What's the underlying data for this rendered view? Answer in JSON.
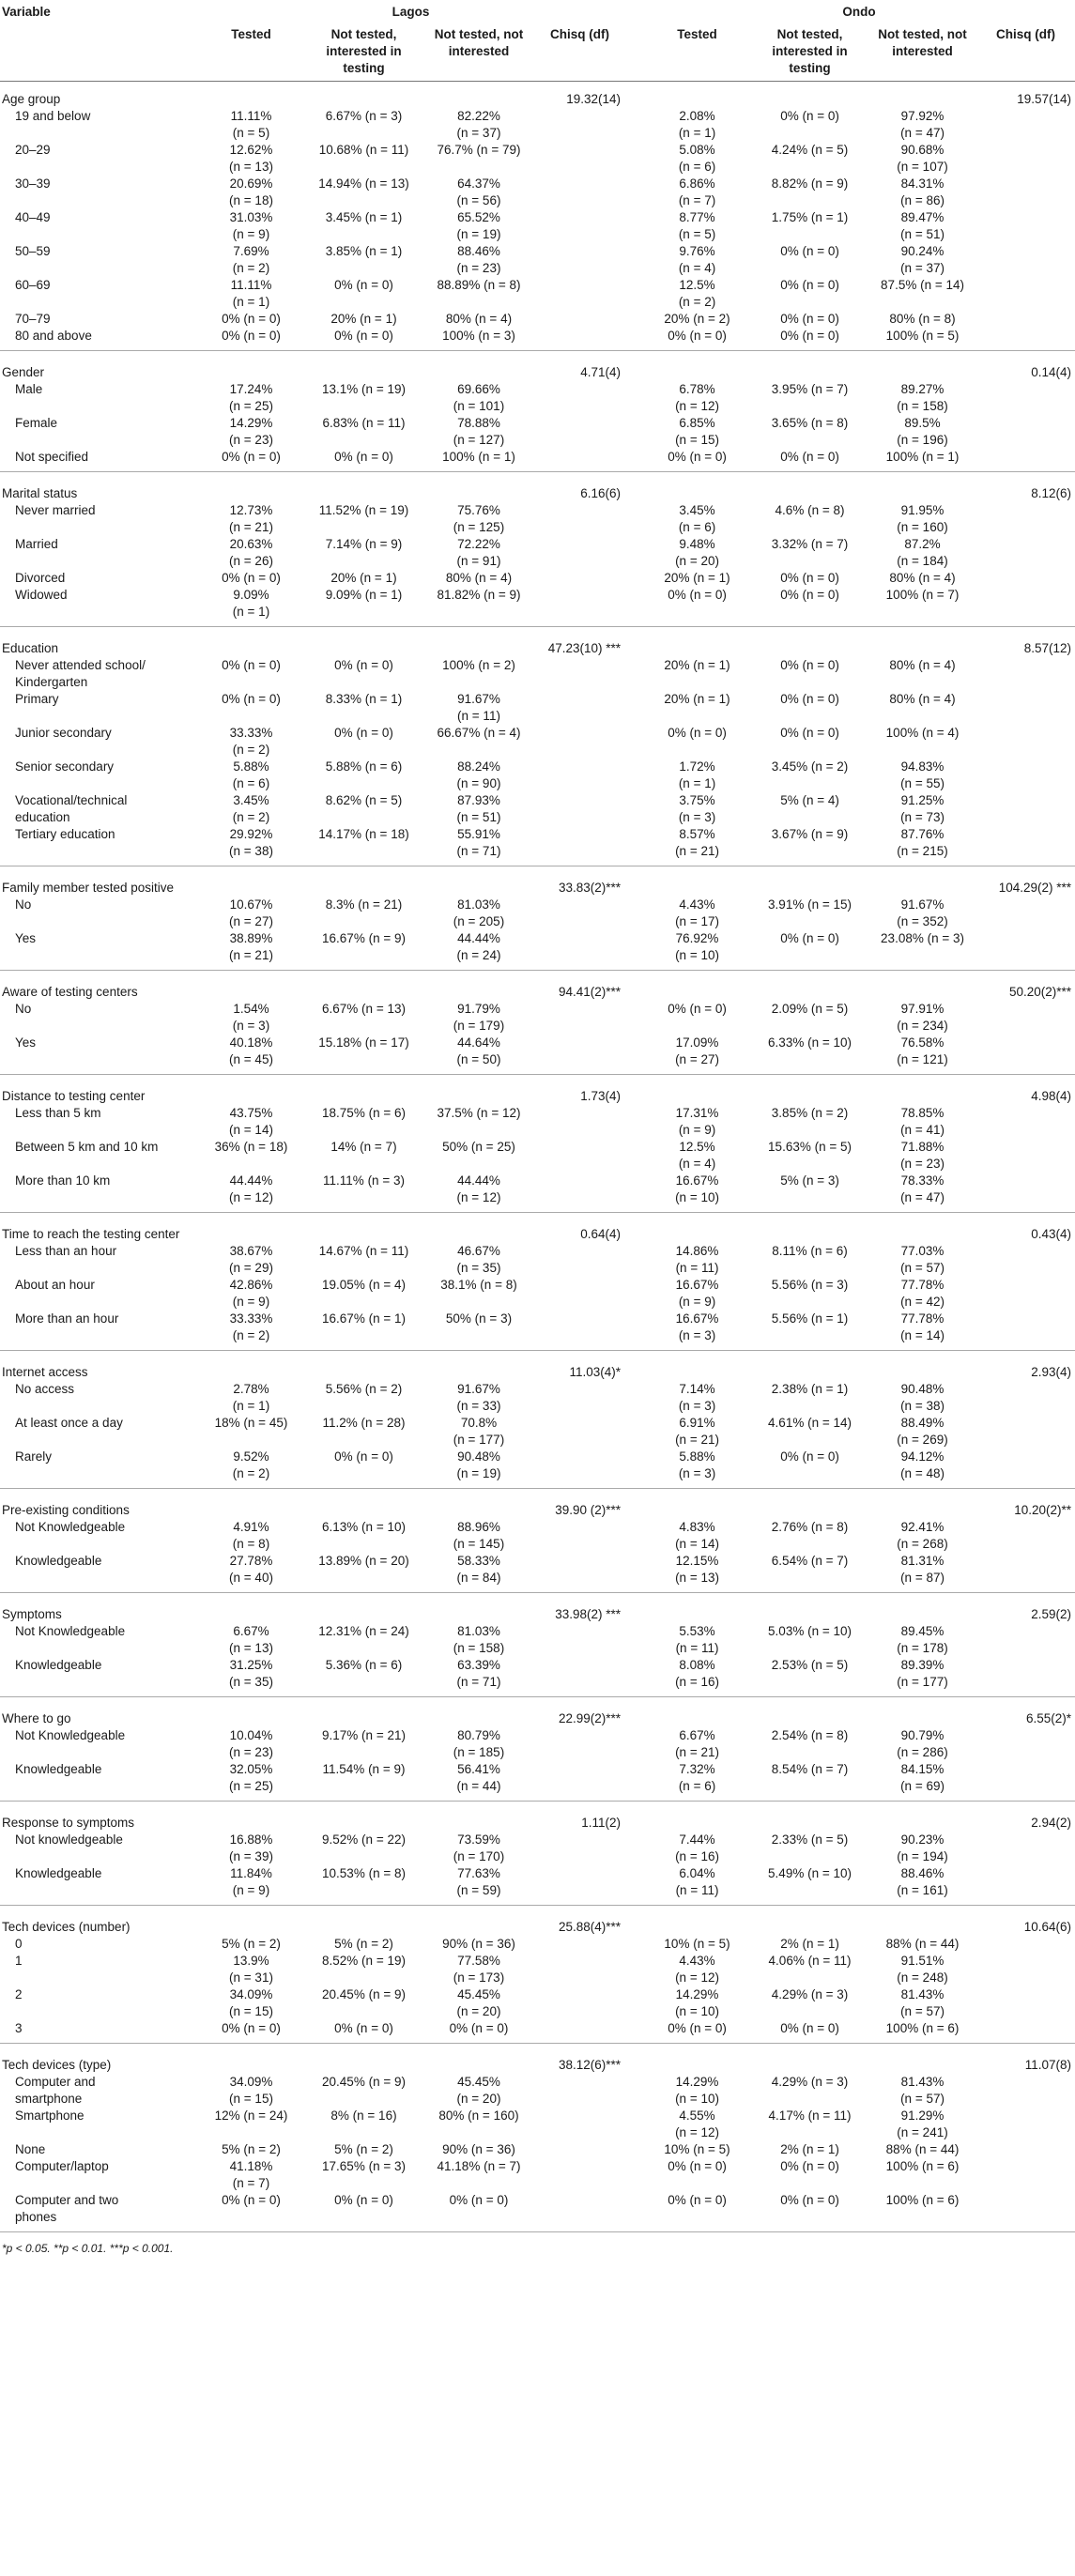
{
  "header": {
    "variable": "Variable",
    "lagos": "Lagos",
    "ondo": "Ondo",
    "columns": [
      "Tested",
      "Not tested, interested in testing",
      "Not tested, not interested",
      "Chisq (df)",
      "Tested",
      "Not tested, interested in testing",
      "Not tested, not interested",
      "Chisq (df)"
    ]
  },
  "groups": [
    {
      "name": "Age group",
      "chi_lagos": "19.32(14)",
      "chi_ondo": "19.57(14)",
      "rows": [
        {
          "label": "19 and below",
          "cells": [
            "11.11%|(n = 5)",
            "6.67% (n = 3)",
            "82.22%|(n = 37)",
            "2.08%|(n = 1)",
            "0% (n = 0)",
            "97.92%|(n = 47)"
          ]
        },
        {
          "label": "20–29",
          "cells": [
            "12.62%|(n = 13)",
            "10.68% (n = 11)",
            "76.7% (n = 79)",
            "5.08%|(n = 6)",
            "4.24% (n = 5)",
            "90.68%|(n = 107)"
          ]
        },
        {
          "label": "30–39",
          "cells": [
            "20.69%|(n = 18)",
            "14.94% (n = 13)",
            "64.37%|(n = 56)",
            "6.86%|(n = 7)",
            "8.82% (n = 9)",
            "84.31%|(n = 86)"
          ]
        },
        {
          "label": "40–49",
          "cells": [
            "31.03%|(n = 9)",
            "3.45% (n = 1)",
            "65.52%|(n = 19)",
            "8.77%|(n = 5)",
            "1.75% (n = 1)",
            "89.47%|(n = 51)"
          ]
        },
        {
          "label": "50–59",
          "cells": [
            "7.69%|(n = 2)",
            "3.85% (n = 1)",
            "88.46%|(n = 23)",
            "9.76%|(n = 4)",
            "0% (n = 0)",
            "90.24%|(n = 37)"
          ]
        },
        {
          "label": "60–69",
          "cells": [
            "11.11%|(n = 1)",
            "0% (n = 0)",
            "88.89% (n = 8)",
            "12.5%|(n = 2)",
            "0% (n = 0)",
            "87.5% (n = 14)"
          ]
        },
        {
          "label": "70–79",
          "cells": [
            "0% (n = 0)",
            "20% (n = 1)",
            "80% (n = 4)",
            "20% (n = 2)",
            "0% (n = 0)",
            "80% (n = 8)"
          ]
        },
        {
          "label": "80 and above",
          "cells": [
            "0% (n = 0)",
            "0% (n = 0)",
            "100% (n = 3)",
            "0% (n = 0)",
            "0% (n = 0)",
            "100% (n = 5)"
          ]
        }
      ]
    },
    {
      "name": "Gender",
      "chi_lagos": "4.71(4)",
      "chi_ondo": "0.14(4)",
      "rows": [
        {
          "label": "Male",
          "cells": [
            "17.24%|(n = 25)",
            "13.1% (n = 19)",
            "69.66%|(n = 101)",
            "6.78%|(n = 12)",
            "3.95% (n = 7)",
            "89.27%|(n = 158)"
          ]
        },
        {
          "label": "Female",
          "cells": [
            "14.29%|(n = 23)",
            "6.83% (n = 11)",
            "78.88%|(n = 127)",
            "6.85%|(n = 15)",
            "3.65% (n = 8)",
            "89.5%|(n = 196)"
          ]
        },
        {
          "label": "Not specified",
          "cells": [
            "0% (n = 0)",
            "0% (n = 0)",
            "100% (n = 1)",
            "0% (n = 0)",
            "0% (n = 0)",
            "100% (n = 1)"
          ]
        }
      ]
    },
    {
      "name": "Marital status",
      "chi_lagos": "6.16(6)",
      "chi_ondo": "8.12(6)",
      "rows": [
        {
          "label": "Never married",
          "cells": [
            "12.73%|(n = 21)",
            "11.52% (n = 19)",
            "75.76%|(n = 125)",
            "3.45%|(n = 6)",
            "4.6% (n = 8)",
            "91.95%|(n = 160)"
          ]
        },
        {
          "label": "Married",
          "cells": [
            "20.63%|(n = 26)",
            "7.14% (n = 9)",
            "72.22%|(n = 91)",
            "9.48%|(n = 20)",
            "3.32% (n = 7)",
            "87.2%|(n = 184)"
          ]
        },
        {
          "label": "Divorced",
          "cells": [
            "0% (n = 0)",
            "20% (n = 1)",
            "80% (n = 4)",
            "20% (n = 1)",
            "0% (n = 0)",
            "80% (n = 4)"
          ]
        },
        {
          "label": "Widowed",
          "cells": [
            "9.09%|(n = 1)",
            "9.09% (n = 1)",
            "81.82% (n = 9)",
            "0% (n = 0)",
            "0% (n = 0)",
            "100% (n = 7)"
          ]
        }
      ]
    },
    {
      "name": "Education",
      "chi_lagos": "47.23(10) ***",
      "chi_ondo": "8.57(12)",
      "rows": [
        {
          "label": "Never attended school/|Kindergarten",
          "cells": [
            "0% (n = 0)",
            "0% (n = 0)",
            "100% (n = 2)",
            "20% (n = 1)",
            "0% (n = 0)",
            "80% (n = 4)"
          ]
        },
        {
          "label": "Primary",
          "cells": [
            "0% (n = 0)",
            "8.33% (n = 1)",
            "91.67%|(n = 11)",
            "20% (n = 1)",
            "0% (n = 0)",
            "80% (n = 4)"
          ]
        },
        {
          "label": "Junior secondary",
          "cells": [
            "33.33%|(n = 2)",
            "0% (n = 0)",
            "66.67% (n = 4)",
            "0% (n = 0)",
            "0% (n = 0)",
            "100% (n = 4)"
          ]
        },
        {
          "label": "Senior secondary",
          "cells": [
            "5.88%|(n = 6)",
            "5.88% (n = 6)",
            "88.24%|(n = 90)",
            "1.72%|(n = 1)",
            "3.45% (n = 2)",
            "94.83%|(n = 55)"
          ]
        },
        {
          "label": "Vocational/technical|education",
          "cells": [
            "3.45%|(n = 2)",
            "8.62% (n = 5)",
            "87.93%|(n = 51)",
            "3.75%|(n = 3)",
            "5% (n = 4)",
            "91.25%|(n = 73)"
          ]
        },
        {
          "label": "Tertiary education",
          "cells": [
            "29.92%|(n = 38)",
            "14.17% (n = 18)",
            "55.91%|(n = 71)",
            "8.57%|(n = 21)",
            "3.67% (n = 9)",
            "87.76%|(n = 215)"
          ]
        }
      ]
    },
    {
      "name": "Family member tested positive",
      "chi_lagos": "33.83(2)***",
      "chi_ondo": "104.29(2) ***",
      "rows": [
        {
          "label": "No",
          "cells": [
            "10.67%|(n = 27)",
            "8.3% (n = 21)",
            "81.03%|(n = 205)",
            "4.43%|(n = 17)",
            "3.91% (n = 15)",
            "91.67%|(n = 352)"
          ]
        },
        {
          "label": "Yes",
          "cells": [
            "38.89%|(n = 21)",
            "16.67% (n = 9)",
            "44.44%|(n = 24)",
            "76.92%|(n = 10)",
            "0% (n = 0)",
            "23.08% (n = 3)"
          ]
        }
      ]
    },
    {
      "name": "Aware of testing centers",
      "chi_lagos": "94.41(2)***",
      "chi_ondo": "50.20(2)***",
      "rows": [
        {
          "label": "No",
          "cells": [
            "1.54%|(n = 3)",
            "6.67% (n = 13)",
            "91.79%|(n = 179)",
            "0% (n = 0)",
            "2.09% (n = 5)",
            "97.91%|(n = 234)"
          ]
        },
        {
          "label": "Yes",
          "cells": [
            "40.18%|(n = 45)",
            "15.18% (n = 17)",
            "44.64%|(n = 50)",
            "17.09%|(n = 27)",
            "6.33% (n = 10)",
            "76.58%|(n = 121)"
          ]
        }
      ]
    },
    {
      "name": "Distance to testing center",
      "chi_lagos": "1.73(4)",
      "chi_ondo": "4.98(4)",
      "rows": [
        {
          "label": "Less than 5 km",
          "cells": [
            "43.75%|(n = 14)",
            "18.75% (n = 6)",
            "37.5% (n = 12)",
            "17.31%|(n = 9)",
            "3.85% (n = 2)",
            "78.85%|(n = 41)"
          ]
        },
        {
          "label": "Between 5 km and 10 km",
          "cells": [
            "36% (n = 18)",
            "14% (n = 7)",
            "50% (n = 25)",
            "12.5%|(n = 4)",
            "15.63% (n = 5)",
            "71.88%|(n = 23)"
          ]
        },
        {
          "label": "More than 10 km",
          "cells": [
            "44.44%|(n = 12)",
            "11.11% (n = 3)",
            "44.44%|(n = 12)",
            "16.67%|(n = 10)",
            "5% (n = 3)",
            "78.33%|(n = 47)"
          ]
        }
      ]
    },
    {
      "name": "Time to reach the testing center",
      "chi_lagos": "0.64(4)",
      "chi_ondo": "0.43(4)",
      "rows": [
        {
          "label": "Less than an hour",
          "cells": [
            "38.67%|(n = 29)",
            "14.67% (n = 11)",
            "46.67%|(n = 35)",
            "14.86%|(n = 11)",
            "8.11% (n = 6)",
            "77.03%|(n = 57)"
          ]
        },
        {
          "label": "About an hour",
          "cells": [
            "42.86%|(n = 9)",
            "19.05% (n = 4)",
            "38.1% (n = 8)",
            "16.67%|(n = 9)",
            "5.56% (n = 3)",
            "77.78%|(n = 42)"
          ]
        },
        {
          "label": "More than an hour",
          "cells": [
            "33.33%|(n = 2)",
            "16.67% (n = 1)",
            "50% (n = 3)",
            "16.67%|(n = 3)",
            "5.56% (n = 1)",
            "77.78%|(n = 14)"
          ]
        }
      ]
    },
    {
      "name": "Internet access",
      "chi_lagos": "11.03(4)*",
      "chi_ondo": "2.93(4)",
      "rows": [
        {
          "label": "No access",
          "cells": [
            "2.78%|(n = 1)",
            "5.56% (n = 2)",
            "91.67%|(n = 33)",
            "7.14%|(n = 3)",
            "2.38% (n = 1)",
            "90.48%|(n = 38)"
          ]
        },
        {
          "label": "At least once a day",
          "cells": [
            "18% (n = 45)",
            "11.2% (n = 28)",
            "70.8%|(n = 177)",
            "6.91%|(n = 21)",
            "4.61% (n = 14)",
            "88.49%|(n = 269)"
          ]
        },
        {
          "label": "Rarely",
          "cells": [
            "9.52%|(n = 2)",
            "0% (n = 0)",
            "90.48%|(n = 19)",
            "5.88%|(n = 3)",
            "0% (n = 0)",
            "94.12%|(n = 48)"
          ]
        }
      ]
    },
    {
      "name": "Pre-existing conditions",
      "chi_lagos": "39.90 (2)***",
      "chi_ondo": "10.20(2)**",
      "rows": [
        {
          "label": "Not Knowledgeable",
          "cells": [
            "4.91%|(n = 8)",
            "6.13% (n = 10)",
            "88.96%|(n = 145)",
            "4.83%|(n = 14)",
            "2.76% (n = 8)",
            "92.41%|(n = 268)"
          ]
        },
        {
          "label": "Knowledgeable",
          "cells": [
            "27.78%|(n = 40)",
            "13.89% (n = 20)",
            "58.33%|(n = 84)",
            "12.15%|(n = 13)",
            "6.54% (n = 7)",
            "81.31%|(n = 87)"
          ]
        }
      ]
    },
    {
      "name": "Symptoms",
      "chi_lagos": "33.98(2) ***",
      "chi_ondo": "2.59(2)",
      "rows": [
        {
          "label": "Not Knowledgeable",
          "cells": [
            "6.67%|(n = 13)",
            "12.31% (n = 24)",
            "81.03%|(n = 158)",
            "5.53%|(n = 11)",
            "5.03% (n = 10)",
            "89.45%|(n = 178)"
          ]
        },
        {
          "label": "Knowledgeable",
          "cells": [
            "31.25%|(n = 35)",
            "5.36% (n = 6)",
            "63.39%|(n = 71)",
            "8.08%|(n = 16)",
            "2.53% (n = 5)",
            "89.39%|(n = 177)"
          ]
        }
      ]
    },
    {
      "name": "Where to go",
      "chi_lagos": "22.99(2)***",
      "chi_ondo": "6.55(2)*",
      "rows": [
        {
          "label": "Not Knowledgeable",
          "cells": [
            "10.04%|(n = 23)",
            "9.17% (n = 21)",
            "80.79%|(n = 185)",
            "6.67%|(n = 21)",
            "2.54% (n = 8)",
            "90.79%|(n = 286)"
          ]
        },
        {
          "label": "Knowledgeable",
          "cells": [
            "32.05%|(n = 25)",
            "11.54% (n = 9)",
            "56.41%|(n = 44)",
            "7.32%|(n = 6)",
            "8.54% (n = 7)",
            "84.15%|(n = 69)"
          ]
        }
      ]
    },
    {
      "name": "Response to symptoms",
      "chi_lagos": "1.11(2)",
      "chi_ondo": "2.94(2)",
      "rows": [
        {
          "label": "Not knowledgeable",
          "cells": [
            "16.88%|(n = 39)",
            "9.52% (n = 22)",
            "73.59%|(n = 170)",
            "7.44%|(n = 16)",
            "2.33% (n = 5)",
            "90.23%|(n = 194)"
          ]
        },
        {
          "label": "Knowledgeable",
          "cells": [
            "11.84%|(n = 9)",
            "10.53% (n = 8)",
            "77.63%|(n = 59)",
            "6.04%|(n = 11)",
            "5.49% (n = 10)",
            "88.46%|(n = 161)"
          ]
        }
      ]
    },
    {
      "name": "Tech devices (number)",
      "chi_lagos": "25.88(4)***",
      "chi_ondo": "10.64(6)",
      "rows": [
        {
          "label": "0",
          "cells": [
            "5% (n = 2)",
            "5% (n = 2)",
            "90% (n = 36)",
            "10% (n = 5)",
            "2% (n = 1)",
            "88% (n = 44)"
          ]
        },
        {
          "label": "1",
          "cells": [
            "13.9%|(n = 31)",
            "8.52% (n = 19)",
            "77.58%|(n = 173)",
            "4.43%|(n = 12)",
            "4.06% (n = 11)",
            "91.51%|(n = 248)"
          ]
        },
        {
          "label": "2",
          "cells": [
            "34.09%|(n = 15)",
            "20.45% (n = 9)",
            "45.45%|(n = 20)",
            "14.29%|(n = 10)",
            "4.29% (n = 3)",
            "81.43%|(n = 57)"
          ]
        },
        {
          "label": "3",
          "cells": [
            "0% (n = 0)",
            "0% (n = 0)",
            "0% (n = 0)",
            "0% (n = 0)",
            "0% (n = 0)",
            "100% (n = 6)"
          ]
        }
      ]
    },
    {
      "name": "Tech devices (type)",
      "chi_lagos": "38.12(6)***",
      "chi_ondo": "11.07(8)",
      "rows": [
        {
          "label": "Computer and|smartphone",
          "cells": [
            "34.09%|(n = 15)",
            "20.45% (n = 9)",
            "45.45%|(n = 20)",
            "14.29%|(n = 10)",
            "4.29% (n = 3)",
            "81.43%|(n = 57)"
          ]
        },
        {
          "label": "Smartphone",
          "cells": [
            "12% (n = 24)",
            "8% (n = 16)",
            "80% (n = 160)",
            "4.55%|(n = 12)",
            "4.17% (n = 11)",
            "91.29%|(n = 241)"
          ]
        },
        {
          "label": "None",
          "cells": [
            "5% (n = 2)",
            "5% (n = 2)",
            "90% (n = 36)",
            "10% (n = 5)",
            "2% (n = 1)",
            "88% (n = 44)"
          ]
        },
        {
          "label": "Computer/laptop",
          "cells": [
            "41.18%|(n = 7)",
            "17.65% (n = 3)",
            "41.18% (n = 7)",
            "0% (n = 0)",
            "0% (n = 0)",
            "100% (n = 6)"
          ]
        },
        {
          "label": "Computer and two|phones",
          "cells": [
            "0% (n = 0)",
            "0% (n = 0)",
            "0% (n = 0)",
            "0% (n = 0)",
            "0% (n = 0)",
            "100% (n = 6)"
          ]
        }
      ]
    }
  ],
  "footnote": "*p < 0.05. **p < 0.01. ***p < 0.001."
}
